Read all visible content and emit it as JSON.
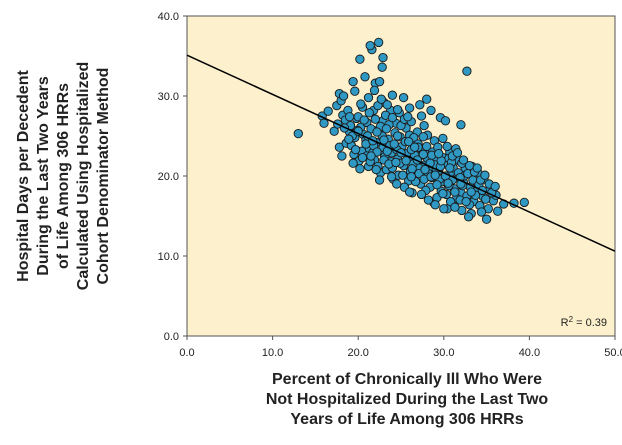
{
  "chart_data": {
    "type": "scatter",
    "title": "",
    "xlabel_lines": [
      "Percent of Chronically Ill Who Were",
      "Not Hospitalized During the Last Two",
      "Years of Life Among 306 HRRs"
    ],
    "ylabel_lines": [
      "Hospital Days per Decedent",
      "During the Last Two Years",
      "of Life Among 306 HRRs",
      "Calculated Using Hospitalized",
      "Cohort Denominator Method"
    ],
    "xlim": [
      0,
      50
    ],
    "ylim": [
      0,
      40
    ],
    "x_ticks": [
      0,
      10,
      20,
      30,
      40,
      50
    ],
    "y_ticks": [
      0,
      10,
      20,
      30,
      40
    ],
    "x_tick_labels": [
      "0.0",
      "10.0",
      "20.0",
      "30.0",
      "40.0",
      "50.0"
    ],
    "y_tick_labels": [
      "0.0",
      "10.0",
      "20.0",
      "30.0",
      "40.0"
    ],
    "grid": false,
    "background_color": "#fcf1cc",
    "marker_color": "#2f98c3",
    "marker_edge_color": "#1a1a1a",
    "trendline": {
      "intercept": 35.1,
      "slope": -0.49,
      "color": "#000000"
    },
    "r_squared_prefix": "R",
    "r_squared_sup": "2",
    "r_squared_value": " = 0.39",
    "series": [
      {
        "points": [
          [
            13.0,
            25.3
          ],
          [
            15.8,
            27.5
          ],
          [
            16.0,
            26.6
          ],
          [
            16.5,
            28.1
          ],
          [
            17.2,
            25.6
          ],
          [
            17.5,
            28.8
          ],
          [
            17.8,
            30.3
          ],
          [
            18.0,
            29.4
          ],
          [
            18.2,
            27.6
          ],
          [
            18.5,
            27.0
          ],
          [
            18.8,
            28.2
          ],
          [
            19.0,
            25.5
          ],
          [
            19.4,
            31.8
          ],
          [
            19.8,
            27.2
          ],
          [
            20.2,
            34.6
          ],
          [
            20.8,
            32.4
          ],
          [
            21.6,
            35.8
          ],
          [
            22.4,
            36.7
          ],
          [
            21.4,
            36.3
          ],
          [
            22.0,
            31.6
          ],
          [
            22.5,
            31.8
          ],
          [
            22.8,
            33.6
          ],
          [
            22.9,
            34.8
          ],
          [
            23.0,
            29.2
          ],
          [
            21.8,
            28.2
          ],
          [
            20.5,
            28.6
          ],
          [
            25.3,
            29.8
          ],
          [
            23.8,
            28.2
          ],
          [
            28.5,
            28.2
          ],
          [
            29.6,
            27.3
          ],
          [
            32.7,
            33.1
          ],
          [
            32.0,
            26.4
          ],
          [
            18.1,
            22.5
          ],
          [
            17.8,
            23.6
          ],
          [
            18.6,
            24.1
          ],
          [
            19.2,
            23.8
          ],
          [
            19.6,
            24.8
          ],
          [
            20.3,
            26.1
          ],
          [
            20.6,
            25.2
          ],
          [
            20.9,
            24.5
          ],
          [
            21.3,
            23.4
          ],
          [
            21.7,
            22.9
          ],
          [
            22.1,
            24.2
          ],
          [
            22.4,
            25.8
          ],
          [
            22.7,
            23.1
          ],
          [
            23.1,
            22.4
          ],
          [
            23.5,
            24.6
          ],
          [
            23.8,
            21.8
          ],
          [
            24.2,
            23.5
          ],
          [
            24.6,
            22.1
          ],
          [
            24.9,
            24.9
          ],
          [
            25.3,
            21.3
          ],
          [
            25.7,
            22.8
          ],
          [
            26.1,
            20.6
          ],
          [
            26.4,
            23.9
          ],
          [
            26.8,
            21.7
          ],
          [
            27.2,
            22.5
          ],
          [
            27.5,
            20.2
          ],
          [
            27.9,
            23.3
          ],
          [
            28.3,
            21.1
          ],
          [
            28.6,
            19.8
          ],
          [
            29.0,
            22.0
          ],
          [
            29.4,
            20.7
          ],
          [
            29.8,
            19.3
          ],
          [
            30.1,
            21.5
          ],
          [
            30.5,
            18.9
          ],
          [
            30.9,
            20.3
          ],
          [
            31.2,
            18.4
          ],
          [
            31.6,
            19.9
          ],
          [
            32.0,
            17.9
          ],
          [
            32.3,
            19.2
          ],
          [
            32.7,
            17.5
          ],
          [
            33.1,
            18.6
          ],
          [
            33.5,
            16.8
          ],
          [
            33.8,
            18.1
          ],
          [
            34.2,
            16.3
          ],
          [
            34.6,
            17.4
          ],
          [
            35.2,
            15.9
          ],
          [
            35.8,
            16.9
          ],
          [
            36.3,
            15.6
          ],
          [
            37.0,
            16.5
          ],
          [
            38.2,
            16.6
          ],
          [
            39.4,
            16.7
          ],
          [
            33.2,
            15.3
          ],
          [
            32.9,
            14.9
          ],
          [
            35.0,
            14.6
          ],
          [
            32.1,
            15.7
          ],
          [
            30.4,
            15.9
          ],
          [
            28.8,
            16.7
          ],
          [
            26.3,
            17.9
          ],
          [
            24.1,
            19.6
          ],
          [
            22.6,
            20.4
          ],
          [
            21.2,
            21.2
          ],
          [
            20.1,
            21.9
          ],
          [
            19.5,
            22.7
          ],
          [
            19.9,
            25.7
          ],
          [
            21.0,
            26.7
          ],
          [
            21.5,
            25.9
          ],
          [
            22.9,
            26.9
          ],
          [
            24.4,
            26.6
          ],
          [
            25.6,
            26.0
          ],
          [
            26.9,
            25.5
          ],
          [
            27.7,
            26.3
          ],
          [
            28.1,
            25.1
          ],
          [
            28.9,
            24.4
          ],
          [
            29.9,
            24.7
          ],
          [
            30.7,
            23.0
          ],
          [
            31.4,
            23.4
          ],
          [
            31.8,
            21.9
          ],
          [
            32.5,
            21.0
          ],
          [
            33.3,
            21.2
          ],
          [
            34.0,
            20.4
          ],
          [
            34.7,
            19.6
          ],
          [
            35.4,
            18.3
          ],
          [
            36.1,
            17.6
          ],
          [
            20.4,
            23.1
          ],
          [
            21.0,
            22.5
          ],
          [
            21.9,
            22.0
          ],
          [
            22.3,
            21.2
          ],
          [
            23.3,
            20.8
          ],
          [
            23.9,
            22.9
          ],
          [
            24.7,
            20.1
          ],
          [
            25.1,
            23.7
          ],
          [
            25.9,
            19.4
          ],
          [
            26.6,
            22.6
          ],
          [
            27.3,
            19.0
          ],
          [
            27.8,
            21.4
          ],
          [
            28.4,
            18.6
          ],
          [
            29.1,
            20.9
          ],
          [
            29.7,
            18.1
          ],
          [
            30.3,
            17.7
          ],
          [
            31.0,
            19.5
          ],
          [
            31.5,
            17.2
          ],
          [
            32.2,
            18.8
          ],
          [
            33.0,
            16.4
          ],
          [
            33.7,
            17.6
          ],
          [
            34.4,
            15.5
          ],
          [
            24.3,
            25.4
          ],
          [
            25.0,
            26.3
          ],
          [
            25.5,
            24.3
          ],
          [
            26.0,
            25.1
          ],
          [
            26.5,
            24.8
          ],
          [
            27.0,
            24.0
          ],
          [
            27.6,
            24.9
          ],
          [
            28.0,
            23.7
          ],
          [
            28.7,
            23.0
          ],
          [
            29.3,
            23.6
          ],
          [
            29.9,
            22.3
          ],
          [
            30.6,
            22.2
          ],
          [
            31.1,
            21.0
          ],
          [
            31.7,
            20.4
          ],
          [
            32.4,
            20.0
          ],
          [
            33.4,
            19.5
          ],
          [
            34.1,
            18.9
          ],
          [
            34.9,
            17.1
          ],
          [
            35.6,
            17.9
          ],
          [
            19.1,
            26.3
          ],
          [
            20.0,
            27.4
          ],
          [
            20.7,
            27.0
          ],
          [
            21.3,
            27.9
          ],
          [
            22.0,
            27.1
          ],
          [
            22.6,
            26.2
          ],
          [
            23.2,
            27.6
          ],
          [
            23.6,
            26.4
          ],
          [
            24.0,
            27.3
          ],
          [
            24.8,
            27.9
          ],
          [
            25.4,
            27.1
          ],
          [
            26.2,
            26.8
          ],
          [
            27.4,
            27.5
          ],
          [
            26.2,
            23.3
          ],
          [
            27.1,
            21.0
          ],
          [
            28.2,
            20.3
          ],
          [
            29.5,
            19.6
          ],
          [
            30.8,
            16.8
          ],
          [
            31.3,
            16.1
          ],
          [
            29.2,
            17.3
          ],
          [
            27.9,
            18.2
          ],
          [
            26.7,
            19.3
          ],
          [
            25.2,
            20.1
          ],
          [
            24.0,
            21.0
          ],
          [
            23.0,
            22.0
          ],
          [
            21.8,
            23.8
          ],
          [
            20.9,
            24.0
          ],
          [
            19.3,
            25.0
          ],
          [
            18.4,
            26.0
          ],
          [
            17.6,
            26.5
          ],
          [
            22.9,
            23.6
          ],
          [
            23.7,
            23.8
          ],
          [
            24.5,
            23.3
          ],
          [
            25.8,
            22.0
          ],
          [
            26.4,
            21.5
          ],
          [
            27.0,
            23.6
          ],
          [
            28.1,
            22.2
          ],
          [
            28.9,
            21.4
          ],
          [
            29.6,
            21.2
          ],
          [
            30.2,
            20.0
          ],
          [
            30.9,
            21.7
          ],
          [
            31.9,
            19.8
          ],
          [
            32.8,
            20.3
          ],
          [
            34.3,
            19.5
          ],
          [
            35.3,
            19.0
          ],
          [
            36.0,
            18.7
          ],
          [
            21.1,
            25.0
          ],
          [
            21.7,
            24.4
          ],
          [
            22.2,
            23.0
          ],
          [
            22.8,
            25.0
          ],
          [
            23.4,
            23.1
          ],
          [
            24.2,
            24.0
          ],
          [
            24.9,
            21.6
          ],
          [
            25.6,
            21.9
          ],
          [
            26.3,
            20.9
          ],
          [
            27.1,
            20.3
          ],
          [
            27.7,
            19.6
          ],
          [
            28.5,
            19.9
          ],
          [
            29.2,
            18.9
          ],
          [
            29.9,
            17.8
          ],
          [
            30.6,
            18.8
          ],
          [
            31.3,
            18.0
          ],
          [
            31.9,
            17.0
          ],
          [
            32.6,
            16.8
          ],
          [
            19.7,
            23.3
          ],
          [
            20.5,
            22.3
          ],
          [
            21.4,
            21.8
          ],
          [
            22.1,
            20.8
          ],
          [
            23.6,
            21.5
          ],
          [
            24.5,
            19.0
          ],
          [
            25.4,
            18.6
          ],
          [
            26.0,
            18.0
          ],
          [
            27.4,
            17.7
          ],
          [
            28.2,
            17.0
          ],
          [
            29.0,
            16.4
          ],
          [
            30.0,
            15.9
          ],
          [
            18.9,
            24.6
          ],
          [
            19.4,
            21.6
          ],
          [
            20.2,
            20.9
          ],
          [
            22.5,
            19.5
          ],
          [
            23.9,
            19.9
          ],
          [
            20.0,
            25.6
          ],
          [
            22.2,
            25.5
          ],
          [
            23.3,
            25.9
          ],
          [
            24.6,
            25.0
          ],
          [
            25.9,
            24.3
          ],
          [
            26.6,
            23.6
          ],
          [
            27.6,
            22.7
          ],
          [
            28.6,
            22.6
          ],
          [
            29.7,
            21.9
          ],
          [
            31.0,
            22.5
          ],
          [
            32.1,
            21.6
          ],
          [
            33.6,
            20.5
          ],
          [
            34.8,
            20.1
          ],
          [
            30.4,
            23.7
          ],
          [
            31.6,
            22.9
          ],
          [
            33.0,
            21.3
          ],
          [
            21.5,
            22.5
          ],
          [
            23.0,
            24.5
          ],
          [
            25.0,
            22.9
          ],
          [
            26.9,
            22.0
          ],
          [
            28.4,
            21.6
          ],
          [
            29.4,
            22.8
          ],
          [
            30.7,
            21.0
          ],
          [
            32.3,
            22.0
          ],
          [
            33.9,
            21.0
          ],
          [
            24.4,
            21.7
          ],
          [
            26.2,
            19.9
          ],
          [
            27.8,
            20.8
          ],
          [
            29.0,
            20.1
          ],
          [
            30.5,
            19.1
          ],
          [
            32.0,
            19.0
          ],
          [
            33.2,
            18.0
          ],
          [
            34.5,
            18.2
          ],
          [
            19.0,
            27.4
          ],
          [
            20.3,
            29.0
          ],
          [
            21.2,
            29.8
          ],
          [
            22.3,
            28.8
          ],
          [
            23.4,
            28.9
          ],
          [
            24.6,
            28.3
          ],
          [
            26.0,
            28.5
          ],
          [
            27.2,
            28.9
          ],
          [
            25.8,
            27.4
          ],
          [
            18.3,
            30.0
          ],
          [
            19.6,
            30.6
          ],
          [
            21.9,
            30.7
          ],
          [
            24.0,
            30.1
          ],
          [
            28.0,
            29.6
          ],
          [
            22.7,
            29.6
          ],
          [
            30.2,
            26.9
          ]
        ]
      }
    ]
  }
}
